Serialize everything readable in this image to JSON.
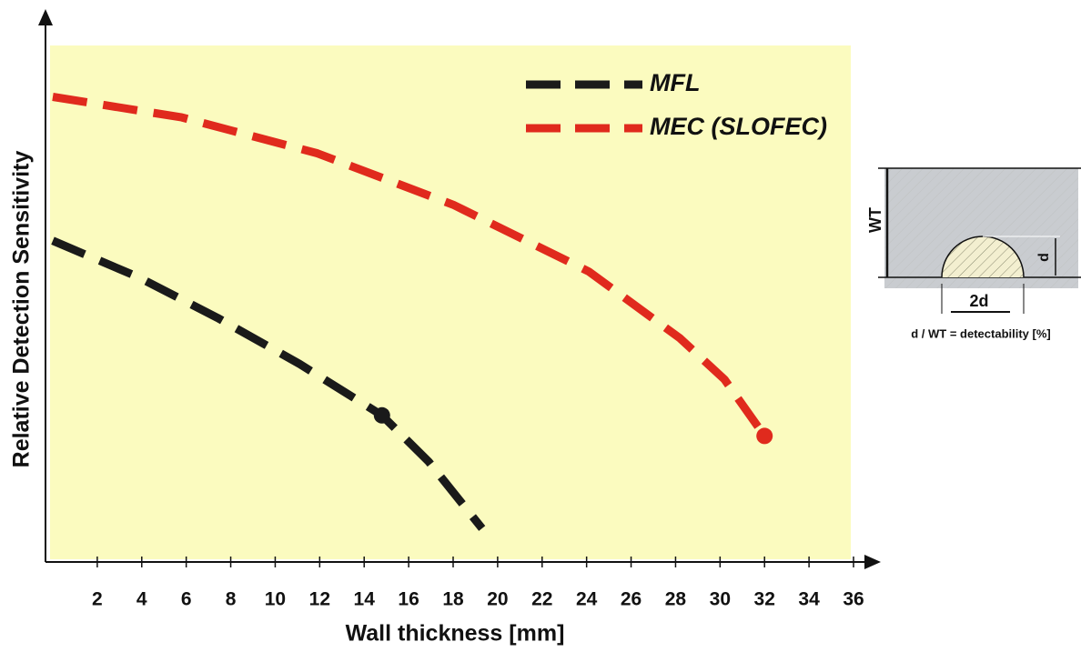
{
  "chart_data": {
    "type": "line",
    "xlabel": "Wall thickness [mm]",
    "ylabel": "Relative Detection Sensitivity",
    "xlim": [
      0,
      36
    ],
    "xticks": [
      2,
      4,
      6,
      8,
      10,
      12,
      14,
      16,
      18,
      20,
      22,
      24,
      26,
      28,
      30,
      32,
      34,
      36
    ],
    "ylim": [
      0,
      100
    ],
    "background": "#fbfbbf",
    "legend": "upper right",
    "series": [
      {
        "name": "MFL",
        "color": "#1a1a1a",
        "x": [
          0,
          3.8,
          7.4,
          11.1,
          14.8,
          16.9,
          19.3
        ],
        "values": [
          62,
          55,
          47,
          38,
          28,
          19,
          6
        ],
        "markers": [
          {
            "x": 14.8,
            "y": 28
          }
        ]
      },
      {
        "name": "MEC (SLOFEC)",
        "color": "#e02a1d",
        "x": [
          0,
          5.8,
          11.9,
          18,
          24.1,
          28.2,
          30.2,
          32
        ],
        "values": [
          90,
          86,
          79,
          69,
          56,
          43,
          35,
          24
        ],
        "markers": [
          {
            "x": 32,
            "y": 24
          }
        ]
      }
    ],
    "inset": {
      "wall": "WT",
      "depth": "d",
      "width": "2d",
      "formula": "d / WT  =  detectability [%]"
    }
  }
}
